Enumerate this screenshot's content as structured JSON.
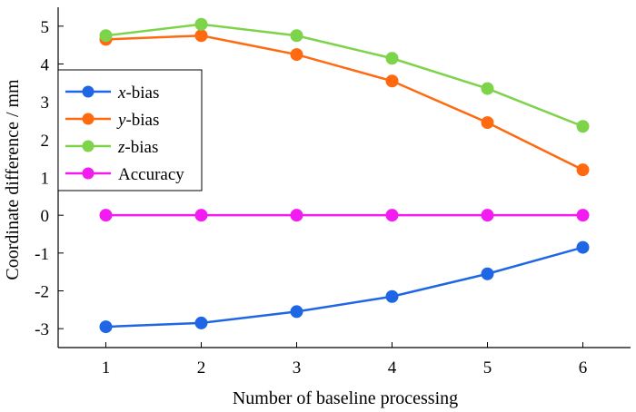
{
  "chart_data": {
    "type": "line",
    "title": "",
    "xlabel": "Number of baseline processing",
    "ylabel": "Coordinate difference / mm",
    "x": [
      1,
      2,
      3,
      4,
      5,
      6
    ],
    "xlim": [
      0.5,
      6.5
    ],
    "ylim": [
      -3.5,
      5.5
    ],
    "xticks": [
      "1",
      "2",
      "3",
      "4",
      "5",
      "6"
    ],
    "yticks": [
      "5",
      "4",
      "3",
      "2",
      "1",
      "0",
      "-1",
      "-2",
      "-3"
    ],
    "ytick_values": [
      5,
      4,
      3,
      2,
      1,
      0,
      -1,
      -2,
      -3
    ],
    "grid": false,
    "legend_position": "left",
    "series": [
      {
        "name": "x-bias",
        "prefix": "x",
        "suffix": "-bias",
        "color": "#1f66e5",
        "values": [
          -2.95,
          -2.85,
          -2.55,
          -2.15,
          -1.55,
          -0.85
        ]
      },
      {
        "name": "y-bias",
        "prefix": "y",
        "suffix": "-bias",
        "color": "#ff6a10",
        "values": [
          4.65,
          4.75,
          4.25,
          3.55,
          2.45,
          1.2
        ]
      },
      {
        "name": "z-bias",
        "prefix": "z",
        "suffix": "-bias",
        "color": "#7dd34a",
        "values": [
          4.75,
          5.05,
          4.75,
          4.15,
          3.35,
          2.35
        ]
      },
      {
        "name": "Accuracy",
        "prefix": "",
        "suffix": "Accuracy",
        "color": "#f21cf0",
        "values": [
          0,
          0,
          0,
          0,
          0,
          0
        ]
      }
    ]
  }
}
